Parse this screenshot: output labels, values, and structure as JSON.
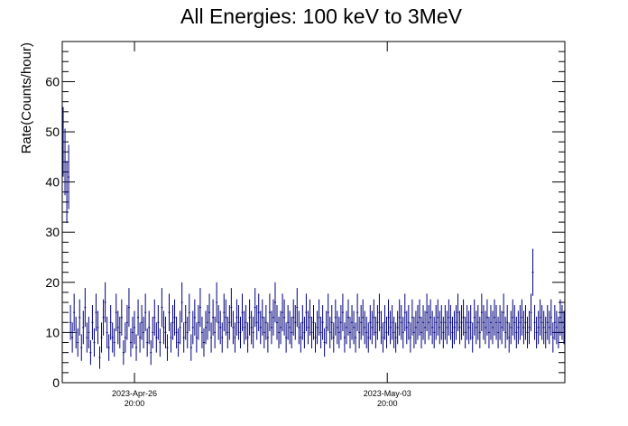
{
  "chart_data": {
    "type": "scatter",
    "title": "All Energies:  100 keV to 3MeV",
    "ylabel": "Rate(Counts/hour)",
    "xlabel": "",
    "ylim": [
      0,
      68
    ],
    "y_major_ticks": [
      0,
      10,
      20,
      30,
      40,
      50,
      60
    ],
    "y_tick_labels": [
      "0",
      "10",
      "20",
      "30",
      "40",
      "50",
      "60"
    ],
    "x_tick_labels": [
      {
        "date": "2023-Apr-26",
        "time": "20:00"
      },
      {
        "date": "2023-May-03",
        "time": "20:00"
      }
    ],
    "x_range_hours_from_apr26_2000": [
      -48,
      286
    ],
    "x_tick_positions_hours_from_apr26_2000": [
      0,
      168
    ],
    "marker_color": "#00007f",
    "error_bars": "sqrt(N) statistical",
    "series": [
      {
        "values": [
          48,
          44,
          38,
          41,
          12,
          9,
          14,
          10,
          8,
          13,
          7,
          11,
          15,
          9,
          10,
          6,
          12,
          8,
          14,
          11,
          5,
          9,
          13,
          16,
          10,
          7,
          12,
          9,
          8,
          14,
          11,
          10,
          13,
          6,
          9,
          12,
          15,
          8,
          10,
          11,
          7,
          13,
          9,
          12,
          10,
          14,
          8,
          11,
          6,
          10,
          13,
          9,
          12,
          8,
          15,
          11,
          10,
          7,
          14,
          9,
          12,
          13,
          10,
          8,
          11,
          16,
          9,
          12,
          10,
          14,
          7,
          11,
          13,
          9,
          12,
          15,
          10,
          8,
          11,
          12,
          14,
          9,
          13,
          10,
          16,
          12,
          11,
          9,
          14,
          13,
          10,
          12,
          15,
          11,
          9,
          13,
          12,
          10,
          14,
          11,
          12,
          9,
          13,
          11,
          10,
          15,
          12,
          14,
          11,
          13,
          10,
          12,
          9,
          14,
          11,
          13,
          16,
          12,
          10,
          11,
          14,
          13,
          9,
          12,
          11,
          10,
          13,
          12,
          15,
          11,
          9,
          12,
          10,
          14,
          11,
          13,
          10,
          12,
          9,
          11,
          13,
          10,
          12,
          8,
          11,
          14,
          10,
          12,
          9,
          13,
          11,
          10,
          12,
          14,
          9,
          11,
          13,
          10,
          12,
          11,
          9,
          14,
          10,
          12,
          13,
          11,
          10,
          9,
          12,
          11,
          13,
          10,
          12,
          14,
          11,
          9,
          12,
          10,
          13,
          11,
          12,
          10,
          9,
          11,
          13,
          12,
          10,
          14,
          11,
          12,
          9,
          13,
          10,
          11,
          12,
          13,
          10,
          12,
          11,
          14,
          12,
          13,
          11,
          10,
          12,
          13,
          11,
          12,
          10,
          12,
          11,
          13,
          12,
          10,
          11,
          12,
          14,
          11,
          12,
          13,
          10,
          12,
          11,
          12,
          9,
          13,
          11,
          12,
          10,
          14,
          12,
          11,
          13,
          10,
          12,
          11,
          13,
          12,
          10,
          12,
          11,
          14,
          10,
          12,
          9,
          11,
          13,
          12,
          10,
          11,
          12,
          13,
          11,
          12,
          10,
          11,
          14,
          22,
          12,
          10,
          11,
          13,
          12,
          11,
          10,
          12,
          11,
          13,
          9,
          12,
          11,
          10,
          13,
          12,
          11
        ]
      }
    ]
  }
}
